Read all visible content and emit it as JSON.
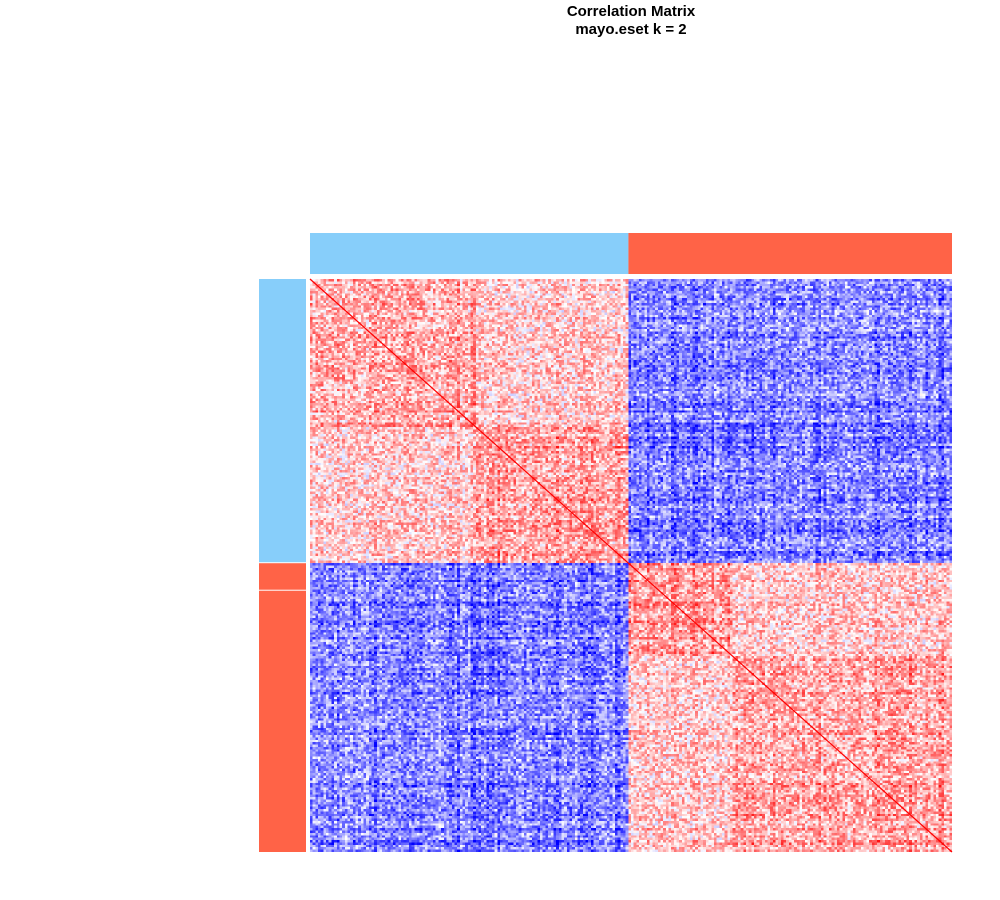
{
  "chart_data": {
    "type": "heatmap",
    "title": "Correlation Matrix",
    "subtitle": "mayo.eset k = 2",
    "colors": {
      "cluster_1": "#87CEFA",
      "cluster_2": "#FF6347",
      "positive": "#FF0000",
      "negative": "#0000FF",
      "neutral": "#FFFFFF",
      "diagonal": "#FF0000"
    },
    "value_range": [
      -1,
      1
    ],
    "diagonal_value": 1,
    "column_clusters": [
      {
        "cluster": 1,
        "fraction": 0.496
      },
      {
        "cluster": 2,
        "fraction": 0.504
      }
    ],
    "row_clusters": [
      {
        "cluster": 1,
        "fraction": 0.496
      },
      {
        "cluster": 2,
        "fraction": 0.048
      },
      {
        "cluster": 2,
        "fraction": 0.456
      }
    ],
    "blocks": [
      {
        "range": [
          0.0,
          0.26
        ],
        "cluster": 1
      },
      {
        "range": [
          0.26,
          0.496
        ],
        "cluster": 1
      },
      {
        "range": [
          0.496,
          0.66
        ],
        "cluster": 2
      },
      {
        "range": [
          0.66,
          1.0
        ],
        "cluster": 2
      }
    ],
    "block_correlation": {
      "within_cluster": 0.25,
      "across_cluster": -0.35
    }
  }
}
